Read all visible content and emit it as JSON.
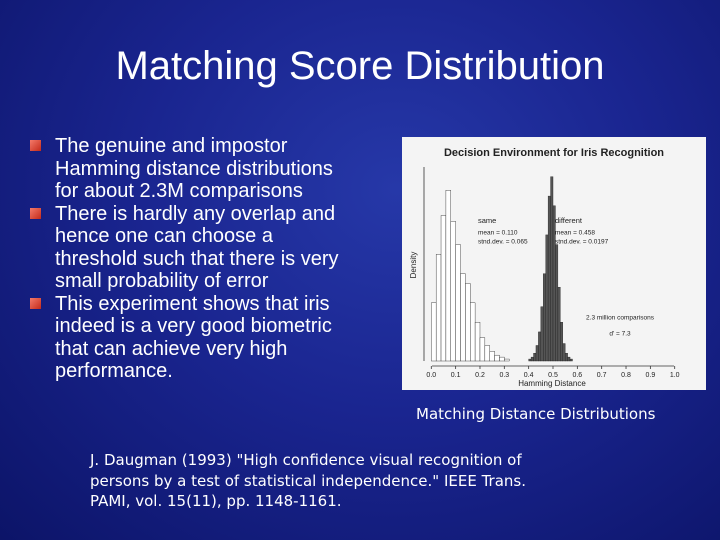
{
  "slide": {
    "title": "Matching Score Distribution",
    "bullets": [
      [
        "The genuine and impostor",
        "Hamming distance distributions",
        "for about 2.3M comparisons"
      ],
      [
        "There is hardly any overlap and",
        "hence one can choose a",
        "threshold such that there is very",
        "small probability of error"
      ],
      [
        "This experiment shows that iris",
        "indeed is a very good biometric",
        "that can achieve very high",
        "performance."
      ]
    ],
    "caption": "Matching Distance Distributions",
    "citation": [
      "J. Daugman (1993) \"High confidence visual recognition of",
      "persons by a test of statistical independence.\" IEEE Trans.",
      "PAMI, vol. 15(11), pp. 1148-1161."
    ]
  },
  "chart_data": {
    "type": "histogram",
    "title": "Decision Environment for Iris Recognition",
    "xlabel": "Hamming Distance",
    "ylabel": "Density",
    "xlim": [
      -0.03,
      1.03
    ],
    "ylim": [
      0,
      100
    ],
    "xticks": [
      {
        "value": 0,
        "label": "0.0"
      },
      {
        "value": 0.1,
        "label": "0.1"
      },
      {
        "value": 0.2,
        "label": "0.2"
      },
      {
        "value": 0.3,
        "label": "0.3"
      },
      {
        "value": 0.4,
        "label": "0.4"
      },
      {
        "value": 0.5,
        "label": "0.5"
      },
      {
        "value": 0.6,
        "label": "0.6"
      },
      {
        "value": 0.7,
        "label": "0.7"
      },
      {
        "value": 0.8,
        "label": "0.8"
      },
      {
        "value": 0.9,
        "label": "0.9"
      },
      {
        "value": 1,
        "label": "1.0"
      }
    ],
    "series": [
      {
        "name": "same",
        "color": "#ffffff",
        "bins": [
          0,
          0.02,
          0.04,
          0.06,
          0.08,
          0.1,
          0.12,
          0.14,
          0.16,
          0.18,
          0.2,
          0.22,
          0.24,
          0.26,
          0.28,
          0.3,
          0.32
        ],
        "values": [
          30,
          55,
          75,
          88,
          72,
          60,
          45,
          40,
          30,
          20,
          12,
          8,
          5,
          3,
          2,
          1
        ]
      },
      {
        "name": "different",
        "color": "#555555",
        "bins": [
          0.4,
          0.41,
          0.42,
          0.43,
          0.44,
          0.45,
          0.46,
          0.47,
          0.48,
          0.49,
          0.5,
          0.51,
          0.52,
          0.53,
          0.54,
          0.55,
          0.56,
          0.57,
          0.58
        ],
        "values": [
          1,
          2,
          4,
          8,
          15,
          28,
          45,
          65,
          85,
          95,
          80,
          60,
          38,
          20,
          9,
          4,
          2,
          1
        ]
      }
    ],
    "annotations": [
      "mean = 0.110",
      "stnd.dev. = 0.065",
      "mean = 0.458",
      "stnd.dev. = 0.0197",
      "2.3 million comparisons",
      "d' = 7.3"
    ]
  }
}
